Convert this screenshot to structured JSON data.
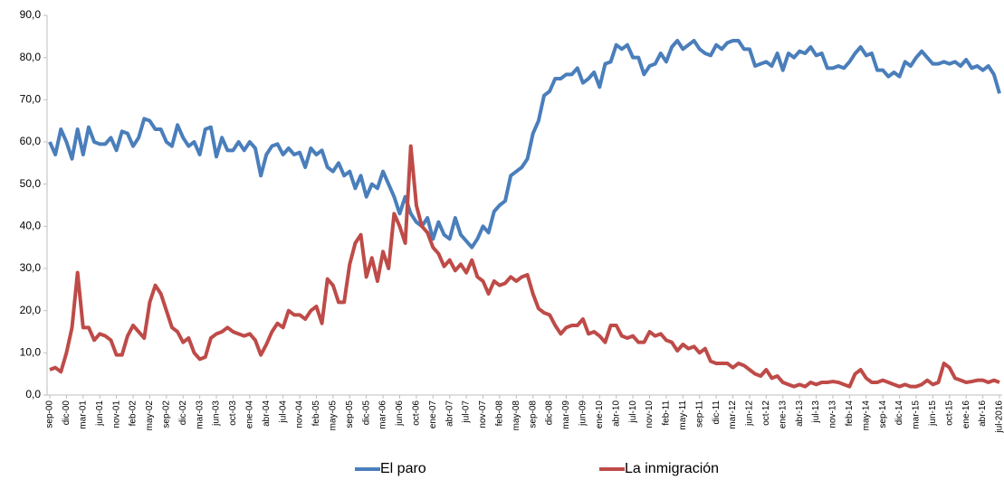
{
  "chart_data": {
    "type": "line",
    "categories": [
      "sep-00",
      null,
      null,
      "dic-00",
      null,
      null,
      "mar-01",
      null,
      null,
      "jun-01",
      null,
      null,
      "nov-01",
      null,
      null,
      "feb-02",
      null,
      null,
      "may-02",
      null,
      null,
      "sep-02",
      null,
      null,
      "dic-02",
      null,
      null,
      "mar-03",
      null,
      null,
      "jun-03",
      null,
      null,
      "oct-03",
      null,
      null,
      "ene-04",
      null,
      null,
      "abr-04",
      null,
      null,
      "jul-04",
      null,
      null,
      "nov-04",
      null,
      null,
      "feb-05",
      null,
      null,
      "may-05",
      null,
      null,
      "sep-05",
      null,
      null,
      "dic-05",
      null,
      null,
      "mar-06",
      null,
      null,
      "jun-06",
      null,
      null,
      "oct-06",
      null,
      null,
      "ene-07",
      null,
      null,
      "abr-07",
      null,
      null,
      "jul-07",
      null,
      null,
      "nov-07",
      null,
      null,
      "feb-08",
      null,
      null,
      "may-08",
      null,
      null,
      "sep-08",
      null,
      null,
      "dic-08",
      null,
      null,
      "mar-09",
      null,
      null,
      "jun-09",
      null,
      null,
      "ene-10",
      null,
      null,
      "abr-10",
      null,
      null,
      "jul-10",
      null,
      null,
      "nov-10",
      null,
      null,
      "feb-11",
      null,
      null,
      "may-11",
      null,
      null,
      "sep-11",
      null,
      null,
      "dic-11",
      null,
      null,
      "mar-12",
      null,
      null,
      "jun-12",
      null,
      null,
      "oct-12",
      null,
      null,
      "ene-13",
      null,
      null,
      "abr-13",
      null,
      null,
      "jul-13",
      null,
      null,
      "nov-13",
      null,
      null,
      "feb-14",
      null,
      null,
      "may-14",
      null,
      null,
      "sep-14",
      null,
      null,
      "dic-14",
      null,
      null,
      "mar-15",
      null,
      null,
      "jun-15",
      null,
      null,
      "oct-15",
      null,
      null,
      "ene-16",
      null,
      null,
      "abr-16",
      null,
      null,
      "jul-2016"
    ],
    "series": [
      {
        "name": "El paro",
        "color": "#4a7ebb",
        "values": [
          60,
          57,
          63,
          60,
          56,
          63,
          57,
          63.5,
          60,
          59.5,
          59.5,
          61,
          58,
          62.5,
          62,
          59,
          61,
          65.5,
          65,
          63,
          63,
          60,
          59,
          64,
          61,
          59,
          60,
          57,
          63,
          63.5,
          56.5,
          61,
          58,
          58,
          60,
          58,
          60,
          58.5,
          52,
          57,
          59,
          59.5,
          57,
          58.5,
          57,
          57.5,
          54,
          58.5,
          57,
          58,
          54,
          53,
          55,
          52,
          53,
          49,
          52,
          47,
          50,
          49,
          53,
          50,
          47,
          43,
          47,
          43,
          41,
          40,
          42,
          37,
          41,
          38,
          37,
          42,
          38,
          36.5,
          35,
          37,
          40,
          38.5,
          43.5,
          45,
          46,
          52,
          53,
          54,
          56,
          62,
          65,
          71,
          72,
          75,
          75,
          76,
          76,
          77.5,
          74,
          75,
          76.5,
          73,
          78.5,
          79,
          83,
          82,
          83,
          80,
          80,
          76,
          78,
          78.5,
          81,
          79,
          82.5,
          84,
          82,
          83,
          84,
          82,
          81,
          80.5,
          83,
          82,
          83.5,
          84,
          84,
          82,
          82,
          78,
          78.5,
          79,
          78,
          81,
          77,
          81,
          80,
          81.5,
          81,
          82.5,
          80.5,
          81,
          77.5,
          77.5,
          78,
          77.5,
          79,
          81,
          82.5,
          80.5,
          81,
          77,
          77,
          75.5,
          76.5,
          75.5,
          79,
          78,
          80,
          81.5,
          80,
          78.5,
          78.5,
          79,
          78.5,
          79,
          78,
          79.5,
          77.5,
          78,
          77,
          78,
          76,
          71.5
        ]
      },
      {
        "name": "La inmigración",
        "color": "#be4b48",
        "values": [
          6,
          6.5,
          5.5,
          10,
          16,
          29,
          16,
          16,
          13,
          14.5,
          14,
          13,
          9.5,
          9.5,
          14,
          16.5,
          15,
          13.5,
          22,
          26,
          24,
          20,
          16,
          15,
          12.5,
          13.5,
          10,
          8.5,
          9,
          13.5,
          14.5,
          15,
          16,
          15,
          14.5,
          14,
          14.5,
          13,
          9.5,
          12,
          15,
          17,
          16,
          20,
          19,
          19,
          18,
          20,
          21,
          17,
          27.5,
          26,
          22,
          22,
          31,
          36,
          38,
          28,
          32.5,
          27,
          34,
          30,
          43,
          40,
          36,
          59,
          45,
          40,
          38.5,
          35,
          33.5,
          30.5,
          32,
          29.5,
          31,
          29,
          32,
          28,
          27,
          24,
          27,
          26,
          26.5,
          28,
          27,
          28,
          28.5,
          24,
          20.5,
          19.5,
          19,
          16.5,
          14.5,
          16,
          16.5,
          16.5,
          18,
          14.5,
          15,
          14,
          12.5,
          16.5,
          16.5,
          14,
          13.5,
          14,
          12.5,
          12.5,
          15,
          14,
          14.5,
          13,
          12.5,
          10.5,
          12,
          11,
          11.5,
          10,
          11,
          8,
          7.5,
          7.5,
          7.5,
          6.5,
          7.5,
          7,
          6,
          5,
          4.5,
          6,
          4,
          4.5,
          3,
          2.5,
          2,
          2.5,
          2,
          3,
          2.5,
          3,
          3,
          3.2,
          3,
          2.5,
          2,
          5,
          6,
          4,
          3,
          3,
          3.5,
          3,
          2.5,
          2,
          2.5,
          2,
          2,
          2.5,
          3.5,
          2.5,
          3,
          7.5,
          6.5,
          4,
          3.5,
          3,
          3.2,
          3.5,
          3.5,
          3,
          3.5,
          3
        ]
      }
    ],
    "ylim": [
      0,
      90
    ],
    "yticks": [
      {
        "value": 0,
        "label": "0,0"
      },
      {
        "value": 10,
        "label": "10,0"
      },
      {
        "value": 20,
        "label": "20,0"
      },
      {
        "value": 30,
        "label": "30,0"
      },
      {
        "value": 40,
        "label": "40,0"
      },
      {
        "value": 50,
        "label": "50,0"
      },
      {
        "value": 60,
        "label": "60,0"
      },
      {
        "value": 70,
        "label": "70,0"
      },
      {
        "value": 80,
        "label": "80,0"
      },
      {
        "value": 90,
        "label": "90,0"
      }
    ],
    "legend": "bottom"
  }
}
